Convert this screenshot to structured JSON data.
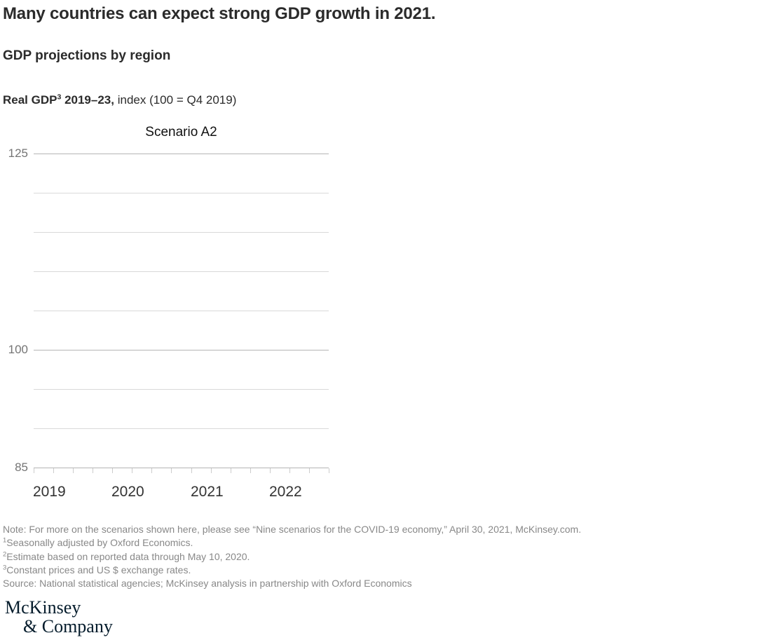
{
  "colors": {
    "background": "#ffffff",
    "title": "#2b2b2b",
    "panel_title": "#111111",
    "y_label": "#757575",
    "x_label": "#333333",
    "grid_major": "#b5b5b5",
    "grid_minor": "#d9d9d9",
    "tick": "#cccccc",
    "note": "#888888",
    "logo": "#051c2c"
  },
  "header": {
    "title": "Many countries can expect strong GDP growth in 2021.",
    "subtitle": "GDP projections by region",
    "measure": {
      "bold_prefix": "Real GDP",
      "superscript": "3",
      "bold_suffix": " 2019–23,",
      "regular": " index (100 = Q4 2019)"
    }
  },
  "chart_data": {
    "type": "line",
    "panel_title": "Scenario A2",
    "series": [],
    "x_axis": {
      "year_labels": [
        "2019",
        "2020",
        "2021",
        "2022"
      ],
      "quarter_tick_count": 16,
      "ticks_per_year": 4
    },
    "y_axis": {
      "range": [
        85,
        125
      ],
      "gridline_values": [
        125,
        120,
        115,
        110,
        105,
        100,
        95,
        90,
        85
      ],
      "labeled_values": [
        125,
        100,
        85
      ]
    },
    "grid": true,
    "legend": false
  },
  "notes": {
    "note": "Note: For more on the scenarios shown here, please see “Nine scenarios for the COVID-19 economy,” April 30, 2021, McKinsey.com.",
    "footnotes": [
      {
        "sup": "1",
        "text": "Seasonally adjusted by Oxford Economics."
      },
      {
        "sup": "2",
        "text": "Estimate based on reported data through May 10, 2020."
      },
      {
        "sup": "3",
        "text": "Constant prices and US $ exchange rates."
      }
    ],
    "source": "Source: National statistical agencies; McKinsey analysis in partnership with Oxford Economics"
  },
  "logo": {
    "line1": "McKinsey",
    "line2": "& Company"
  }
}
